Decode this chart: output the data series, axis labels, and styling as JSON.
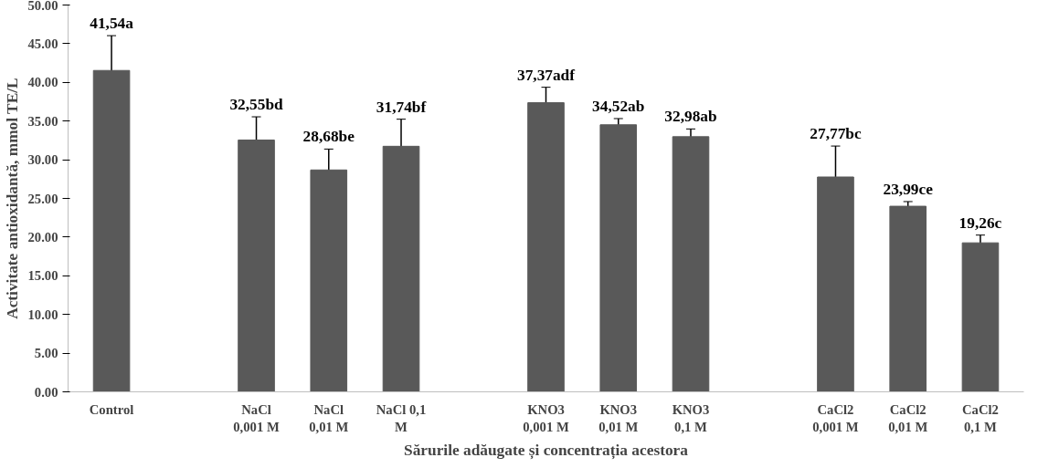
{
  "chart_data": {
    "type": "bar",
    "xlabel": "Sărurile adăugate și concentrația acestora",
    "ylabel": "Activitate antioxidantă, mmol TE/L",
    "categories": [
      "Control",
      null,
      "NaCl\n0,001 M",
      "NaCl\n0,01 M",
      "NaCl 0,1\nM",
      null,
      "KNO3\n0,001 M",
      "KNO3\n0,01 M",
      "KNO3\n0,1 M",
      null,
      "CaCl2\n0,001 M",
      "CaCl2\n0,01 M",
      "CaCl2\n0,1 M"
    ],
    "values": [
      41.54,
      null,
      32.55,
      28.68,
      31.74,
      null,
      37.37,
      34.52,
      32.98,
      null,
      27.77,
      23.99,
      19.26
    ],
    "errors": [
      4.5,
      null,
      3,
      2.7,
      3.5,
      null,
      2,
      0.8,
      1,
      null,
      4,
      0.6,
      1
    ],
    "value_labels": [
      "41,54a",
      null,
      "32,55bd",
      "28,68be",
      "31,74bf",
      null,
      "37,37adf",
      "34,52ab",
      "32,98ab",
      null,
      "27,77bc",
      "23,99ce",
      "19,26c"
    ],
    "color": "#595959",
    "ylim": [
      0,
      50
    ],
    "yticks": [
      {
        "value": 0,
        "label": "0.00"
      },
      {
        "value": 5,
        "label": "5.00"
      },
      {
        "value": 10,
        "label": "10.00"
      },
      {
        "value": 15,
        "label": "15.00"
      },
      {
        "value": 20,
        "label": "20.00"
      },
      {
        "value": 25,
        "label": "25.00"
      },
      {
        "value": 30,
        "label": "30.00"
      },
      {
        "value": 35,
        "label": "35.00"
      },
      {
        "value": 40,
        "label": "40.00"
      },
      {
        "value": 45,
        "label": "45.00"
      },
      {
        "value": 50,
        "label": "50.00"
      }
    ],
    "grid": false
  }
}
